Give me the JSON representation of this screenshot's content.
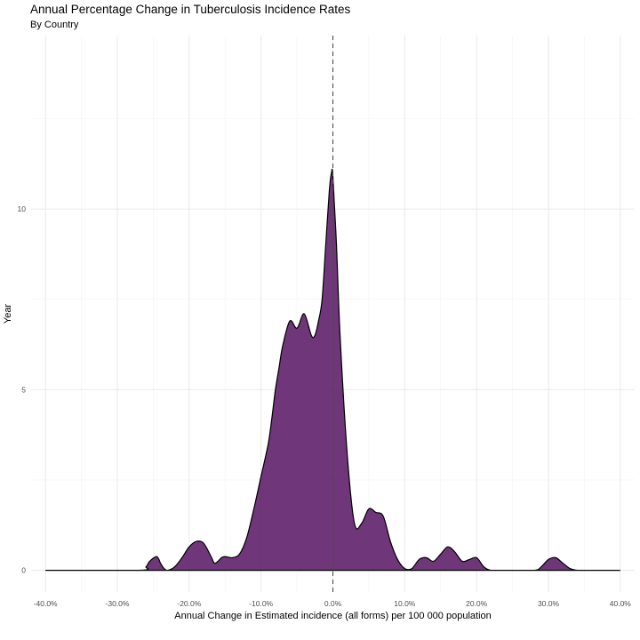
{
  "chart_data": {
    "type": "area",
    "title": "Annual Percentage Change in Tuberculosis Incidence Rates",
    "subtitle": "By Country",
    "xlabel": "Annual Change in Estimated incidence (all forms) per 100 000 population",
    "ylabel": "Year",
    "xlim": [
      -0.42,
      0.42
    ],
    "ylim": [
      -0.6,
      14.8
    ],
    "x_ticks": [
      -0.4,
      -0.3,
      -0.2,
      -0.1,
      0.0,
      0.1,
      0.2,
      0.3,
      0.4
    ],
    "x_tick_labels": [
      "-40.0%",
      "-30.0%",
      "-20.0%",
      "-10.0%",
      "0.0%",
      "10.0%",
      "20.0%",
      "30.0%",
      "40.0%"
    ],
    "y_ticks": [
      0,
      5,
      10
    ],
    "y_tick_labels": [
      "0",
      "5",
      "10"
    ],
    "grid": true,
    "fill_color": "#5b1a66",
    "reference_line_x": 0.0,
    "series": [
      {
        "x": [
          -0.4,
          -0.27,
          -0.26,
          -0.255,
          -0.245,
          -0.24,
          -0.235,
          -0.23,
          -0.22,
          -0.21,
          -0.2,
          -0.19,
          -0.18,
          -0.17,
          -0.165,
          -0.16,
          -0.155,
          -0.15,
          -0.14,
          -0.13,
          -0.12,
          -0.11,
          -0.1,
          -0.09,
          -0.085,
          -0.08,
          -0.075,
          -0.07,
          -0.06,
          -0.05,
          -0.04,
          -0.03,
          -0.025,
          -0.02,
          -0.015,
          -0.01,
          -0.005,
          -0.002,
          0.0,
          0.005,
          0.01,
          0.02,
          0.03,
          0.04,
          0.05,
          0.06,
          0.07,
          0.08,
          0.09,
          0.1,
          0.11,
          0.12,
          0.13,
          0.14,
          0.15,
          0.16,
          0.17,
          0.18,
          0.19,
          0.2,
          0.21,
          0.22,
          0.24,
          0.28,
          0.29,
          0.3,
          0.31,
          0.32,
          0.33,
          0.34,
          0.35,
          0.4
        ],
        "y": [
          0.0,
          0.0,
          0.1,
          0.25,
          0.38,
          0.2,
          0.05,
          0.0,
          0.1,
          0.35,
          0.65,
          0.8,
          0.75,
          0.4,
          0.2,
          0.25,
          0.35,
          0.38,
          0.35,
          0.45,
          0.9,
          1.7,
          2.6,
          3.5,
          4.2,
          5.0,
          5.6,
          6.2,
          6.9,
          6.7,
          7.1,
          6.5,
          6.5,
          6.9,
          7.5,
          9.0,
          10.5,
          11.0,
          10.9,
          9.0,
          6.5,
          3.2,
          1.3,
          1.3,
          1.7,
          1.6,
          1.5,
          0.8,
          0.3,
          0.05,
          0.05,
          0.3,
          0.35,
          0.25,
          0.45,
          0.65,
          0.5,
          0.25,
          0.3,
          0.35,
          0.1,
          0.0,
          0.0,
          0.0,
          0.1,
          0.3,
          0.35,
          0.2,
          0.05,
          0.0,
          0.0,
          0.0
        ]
      }
    ]
  }
}
